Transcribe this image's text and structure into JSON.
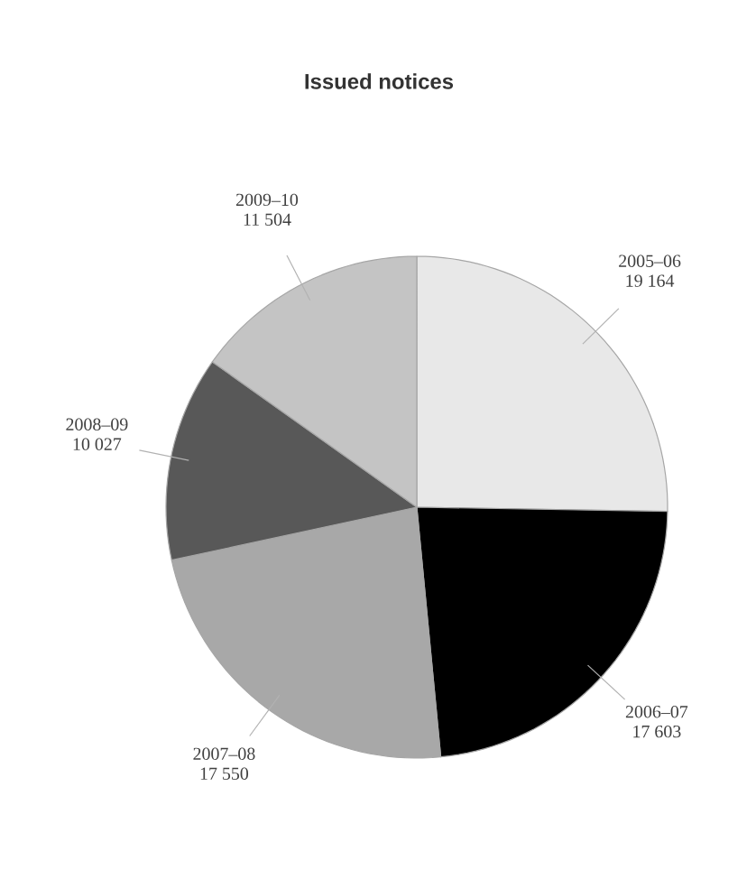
{
  "chart_data": {
    "type": "pie",
    "title": "Issued notices",
    "categories": [
      "2005–06",
      "2006–07",
      "2007–08",
      "2008–09",
      "2009–10"
    ],
    "values": [
      19164,
      17603,
      17550,
      10027,
      11504
    ],
    "value_labels": [
      "19 164",
      "17 603",
      "17 550",
      "10 027",
      "11 504"
    ],
    "colors": [
      "#e8e8e8",
      "#000000",
      "#a8a8a8",
      "#585858",
      "#c4c4c4"
    ]
  }
}
